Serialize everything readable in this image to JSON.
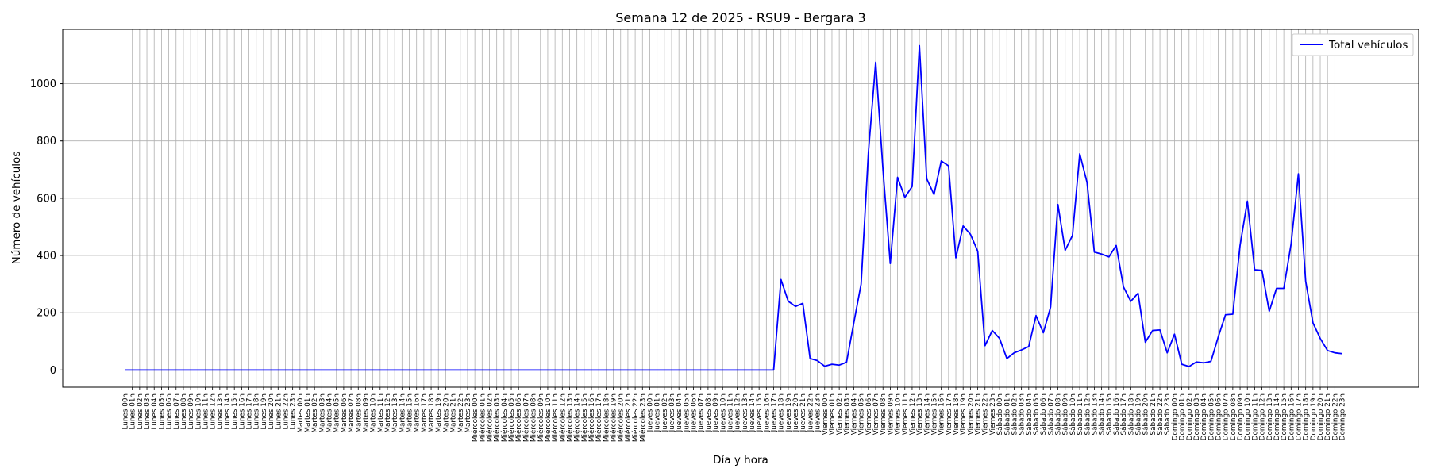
{
  "chart_data": {
    "type": "line",
    "title": "Semana 12 de 2025 - RSU9 - Bergara 3",
    "xlabel": "Día y hora",
    "ylabel": "Número de vehículos",
    "ylim": [
      -60,
      1190
    ],
    "yticks": [
      0,
      200,
      400,
      600,
      800,
      1000
    ],
    "grid": true,
    "legend_position": "top-right",
    "days": [
      "Lunes",
      "Martes",
      "Miércoles",
      "Jueves",
      "Viernes",
      "Sábado",
      "Domingo"
    ],
    "series": [
      {
        "name": "Total vehículos",
        "color": "#0000ff",
        "values": [
          0,
          0,
          0,
          0,
          0,
          0,
          0,
          0,
          0,
          0,
          0,
          0,
          0,
          0,
          0,
          0,
          0,
          0,
          0,
          0,
          0,
          0,
          0,
          0,
          0,
          0,
          0,
          0,
          0,
          0,
          0,
          0,
          0,
          0,
          0,
          0,
          0,
          0,
          0,
          0,
          0,
          0,
          0,
          0,
          0,
          0,
          0,
          0,
          0,
          0,
          0,
          0,
          0,
          0,
          0,
          0,
          0,
          0,
          0,
          0,
          0,
          0,
          0,
          0,
          0,
          0,
          0,
          0,
          0,
          0,
          0,
          0,
          0,
          0,
          0,
          0,
          0,
          0,
          0,
          0,
          0,
          0,
          0,
          0,
          0,
          0,
          0,
          0,
          0,
          0,
          316,
          240,
          222,
          233,
          40,
          33,
          13,
          20,
          17,
          27,
          165,
          300,
          760,
          1075,
          700,
          372,
          673,
          603,
          641,
          1133,
          668,
          613,
          730,
          713,
          392,
          503,
          474,
          415,
          85,
          138,
          110,
          40,
          60,
          70,
          82,
          190,
          130,
          220,
          578,
          418,
          470,
          755,
          655,
          412,
          405,
          395,
          435,
          290,
          240,
          268,
          97,
          138,
          140,
          60,
          125,
          20,
          12,
          28,
          25,
          30,
          115,
          193,
          195,
          435,
          590,
          350,
          348,
          205,
          285,
          285,
          440,
          685,
          310,
          165,
          110,
          68,
          60,
          57
        ]
      }
    ]
  }
}
